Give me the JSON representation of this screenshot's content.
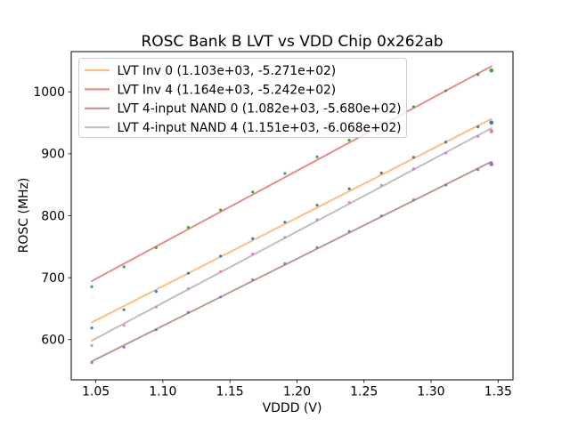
{
  "title": "ROSC Bank B LVT vs VDD Chip 0x262ab",
  "chart_data": {
    "type": "scatter",
    "title": "ROSC Bank B LVT vs VDD Chip 0x262ab",
    "xlabel": "VDDD (V)",
    "ylabel": "ROSC (MHz)",
    "xlim": [
      1.0317,
      1.3611
    ],
    "ylim": [
      535,
      1065
    ],
    "xticks": [
      1.05,
      1.1,
      1.15,
      1.2,
      1.25,
      1.3,
      1.35
    ],
    "xtick_labels": [
      "1.05",
      "1.10",
      "1.15",
      "1.20",
      "1.25",
      "1.30",
      "1.35"
    ],
    "yticks": [
      600,
      700,
      800,
      900,
      1000
    ],
    "ytick_labels": [
      "600",
      "700",
      "800",
      "900",
      "1000"
    ],
    "grid": false,
    "legend_position": "upper left",
    "x": [
      1.047,
      1.071,
      1.095,
      1.119,
      1.143,
      1.167,
      1.191,
      1.215,
      1.239,
      1.263,
      1.287,
      1.311,
      1.335,
      1.345
    ],
    "series": [
      {
        "name": "LVT Inv 0",
        "legend_label": "LVT Inv 0 (1.103e+03, -5.271e+02)",
        "fit_slope": 1103.0,
        "fit_intercept": -527.1,
        "marker_color": "#1f77b4",
        "line_color": "#fdbe84",
        "values": [
          618.7,
          648.2,
          677.7,
          707.1,
          734.6,
          763.1,
          789.5,
          817.0,
          843.5,
          869.0,
          894.4,
          918.9,
          943.4,
          950.4
        ]
      },
      {
        "name": "LVT Inv 4",
        "legend_label": "LVT Inv 4 (1.164e+03, -5.242e+02)",
        "fit_slope": 1164.0,
        "fit_intercept": -524.2,
        "marker_color": "#2ca02c",
        "line_color": "#e88c8c",
        "values": [
          685.5,
          717.4,
          748.4,
          781.3,
          809.3,
          838.2,
          868.2,
          895.1,
          922.1,
          949.0,
          976.0,
          1001.9,
          1027.9,
          1034.5
        ]
      },
      {
        "name": "LVT 4-input NAND 0",
        "legend_label": "LVT 4-input NAND 0 (1.082e+03, -5.680e+02)",
        "fit_slope": 1082.0,
        "fit_intercept": -568.0,
        "marker_color": "#9467bd",
        "line_color": "#bf978f",
        "values": [
          562.9,
          587.8,
          615.8,
          643.8,
          668.7,
          696.7,
          722.7,
          748.6,
          774.6,
          799.6,
          825.5,
          849.5,
          874.4,
          883.3
        ]
      },
      {
        "name": "LVT 4-input NAND 4",
        "legend_label": "LVT 4-input NAND 4 (1.151e+03, -6.068e+02)",
        "fit_slope": 1151.0,
        "fit_intercept": -606.8,
        "marker_color": "#e377c2",
        "line_color": "#bfbfbf",
        "values": [
          590.3,
          622.9,
          652.5,
          682.2,
          709.8,
          738.4,
          765.1,
          793.7,
          821.3,
          849.0,
          875.6,
          901.2,
          927.9,
          936.4
        ]
      }
    ]
  }
}
